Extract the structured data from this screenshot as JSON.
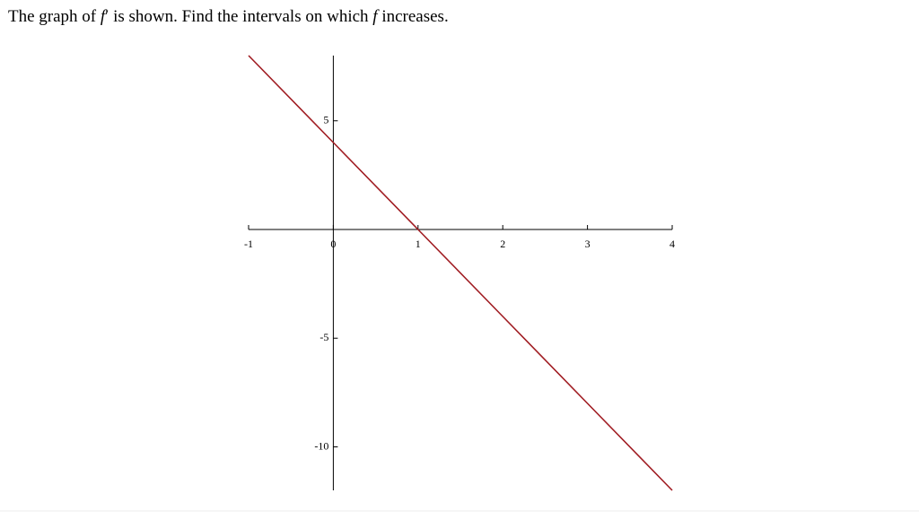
{
  "question": {
    "parts": [
      "The graph of ",
      "f",
      "′",
      " is shown. Find the intervals on which ",
      "f",
      " increases."
    ]
  },
  "chart_data": {
    "type": "line",
    "x": [
      -1,
      0,
      1,
      2,
      3,
      4
    ],
    "series": [
      {
        "color": "#a01c22",
        "values": [
          8,
          4,
          0,
          -4,
          -8,
          -12
        ]
      }
    ],
    "xlim": [
      -1,
      4
    ],
    "ylim": [
      -12,
      8
    ],
    "xticks": [
      -1,
      0,
      1,
      2,
      3,
      4
    ],
    "yticks": [
      -10,
      -5,
      5
    ]
  }
}
